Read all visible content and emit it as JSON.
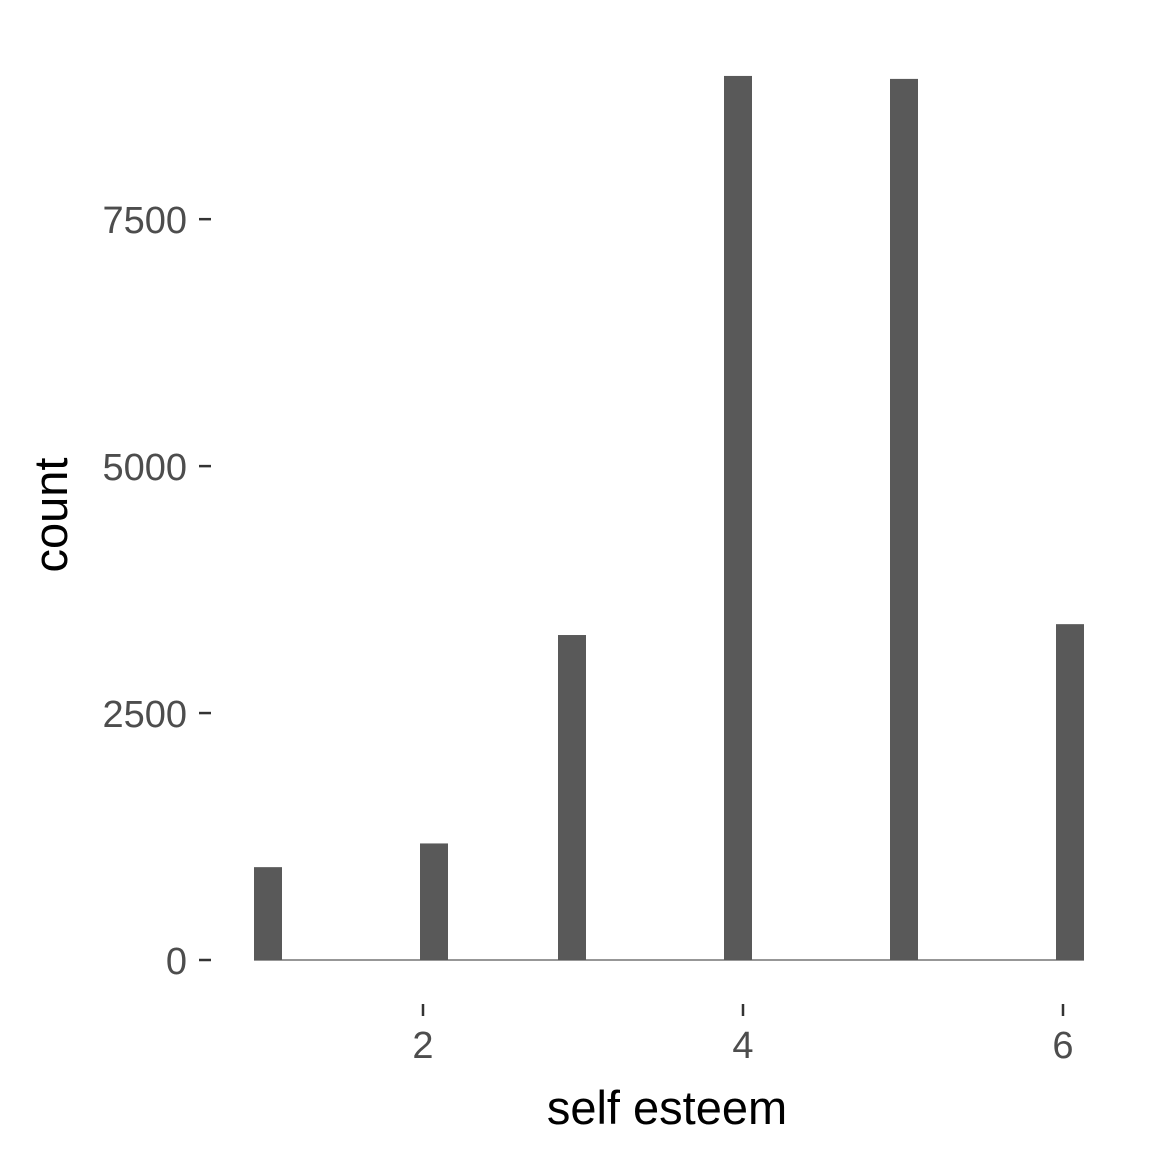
{
  "chart_data": {
    "type": "bar",
    "xlabel": "self esteem",
    "ylabel": "count",
    "x": [
      1.2,
      2.25,
      3.1,
      4.0,
      5.0,
      6.0
    ],
    "values": [
      940,
      1180,
      3290,
      8950,
      8920,
      3400
    ],
    "xlim": [
      1.2,
      6.05
    ],
    "ylim": [
      0,
      9000
    ],
    "x_ticks": [
      2,
      4,
      6
    ],
    "y_ticks": [
      0,
      2500,
      5000,
      7500
    ],
    "grid": false,
    "legend": "none",
    "bar_color": "#595959"
  }
}
